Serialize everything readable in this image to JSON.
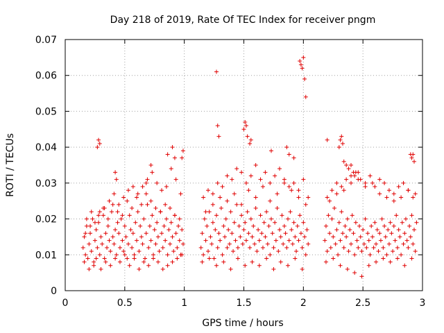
{
  "chart_data": {
    "type": "scatter",
    "title": "Day 218 of 2019, Rate Of TEC Index for receiver pngm",
    "xlabel": "GPS time / hours",
    "ylabel": "ROTI / TECUs",
    "xlim": [
      0,
      3
    ],
    "ylim": [
      0,
      0.07
    ],
    "x_ticks": [
      0,
      0.5,
      1,
      1.5,
      2,
      2.5,
      3
    ],
    "x_tick_labels": [
      "0",
      "0.5",
      "1",
      "1.5",
      "2",
      "2.5",
      "3"
    ],
    "y_ticks": [
      0,
      0.01,
      0.02,
      0.03,
      0.04,
      0.05,
      0.06,
      0.07
    ],
    "y_tick_labels": [
      "0",
      "0.01",
      "0.02",
      "0.03",
      "0.04",
      "0.05",
      "0.06",
      "0.07"
    ],
    "grid": true,
    "marker": "+",
    "color": "#e00000",
    "series": [
      {
        "name": "ROTI",
        "x": [
          0.15,
          0.16,
          0.17,
          0.18,
          0.19,
          0.2,
          0.21,
          0.22,
          0.23,
          0.24,
          0.25,
          0.26,
          0.27,
          0.28,
          0.29,
          0.3,
          0.31,
          0.32,
          0.33,
          0.34,
          0.35,
          0.36,
          0.37,
          0.38,
          0.39,
          0.4,
          0.41,
          0.42,
          0.43,
          0.44,
          0.45,
          0.46,
          0.47,
          0.48,
          0.49,
          0.5,
          0.51,
          0.52,
          0.53,
          0.54,
          0.55,
          0.56,
          0.57,
          0.58,
          0.59,
          0.6,
          0.61,
          0.62,
          0.63,
          0.64,
          0.65,
          0.66,
          0.67,
          0.68,
          0.69,
          0.7,
          0.71,
          0.72,
          0.73,
          0.74,
          0.75,
          0.76,
          0.77,
          0.78,
          0.79,
          0.8,
          0.81,
          0.82,
          0.83,
          0.84,
          0.85,
          0.86,
          0.87,
          0.88,
          0.89,
          0.9,
          0.91,
          0.92,
          0.93,
          0.94,
          0.95,
          0.96,
          0.97,
          0.98,
          0.99,
          0.16,
          0.18,
          0.2,
          0.22,
          0.24,
          0.26,
          0.28,
          0.3,
          0.32,
          0.34,
          0.36,
          0.38,
          0.4,
          0.42,
          0.44,
          0.46,
          0.48,
          0.5,
          0.52,
          0.54,
          0.56,
          0.58,
          0.6,
          0.62,
          0.64,
          0.66,
          0.68,
          0.7,
          0.72,
          0.74,
          0.76,
          0.78,
          0.8,
          0.82,
          0.84,
          0.86,
          0.88,
          0.9,
          0.92,
          0.94,
          0.96,
          0.98,
          0.17,
          0.21,
          0.25,
          0.29,
          0.33,
          0.37,
          0.41,
          0.45,
          0.49,
          0.53,
          0.57,
          0.61,
          0.65,
          0.69,
          0.73,
          0.77,
          0.81,
          0.85,
          0.89,
          0.93,
          0.97,
          0.27,
          0.28,
          0.29,
          0.42,
          0.43,
          0.68,
          0.72,
          0.86,
          0.9,
          0.92,
          0.98,
          0.99,
          1.14,
          1.15,
          1.16,
          1.17,
          1.18,
          1.19,
          1.2,
          1.21,
          1.22,
          1.23,
          1.24,
          1.25,
          1.26,
          1.27,
          1.28,
          1.29,
          1.3,
          1.31,
          1.32,
          1.33,
          1.34,
          1.35,
          1.36,
          1.37,
          1.38,
          1.39,
          1.4,
          1.41,
          1.42,
          1.43,
          1.44,
          1.45,
          1.46,
          1.47,
          1.48,
          1.49,
          1.5,
          1.51,
          1.52,
          1.53,
          1.54,
          1.55,
          1.56,
          1.57,
          1.58,
          1.59,
          1.6,
          1.61,
          1.62,
          1.63,
          1.64,
          1.65,
          1.66,
          1.67,
          1.68,
          1.69,
          1.7,
          1.71,
          1.72,
          1.73,
          1.74,
          1.75,
          1.76,
          1.77,
          1.78,
          1.79,
          1.8,
          1.81,
          1.82,
          1.83,
          1.84,
          1.85,
          1.86,
          1.87,
          1.88,
          1.89,
          1.9,
          1.91,
          1.92,
          1.93,
          1.94,
          1.95,
          1.96,
          1.97,
          1.98,
          1.99,
          2.0,
          2.01,
          2.02,
          2.03,
          2.04,
          1.15,
          1.18,
          1.21,
          1.24,
          1.27,
          1.3,
          1.33,
          1.36,
          1.39,
          1.42,
          1.45,
          1.48,
          1.51,
          1.54,
          1.57,
          1.6,
          1.63,
          1.66,
          1.69,
          1.72,
          1.75,
          1.78,
          1.81,
          1.84,
          1.87,
          1.9,
          1.93,
          1.96,
          1.99,
          2.02,
          1.16,
          1.2,
          1.24,
          1.28,
          1.32,
          1.36,
          1.4,
          1.44,
          1.48,
          1.52,
          1.56,
          1.6,
          1.64,
          1.68,
          1.72,
          1.76,
          1.8,
          1.84,
          1.88,
          1.92,
          1.96,
          2.0,
          2.04,
          1.27,
          1.28,
          1.29,
          1.5,
          1.51,
          1.52,
          1.53,
          1.55,
          1.56,
          1.73,
          1.86,
          1.88,
          1.92,
          1.97,
          1.98,
          1.99,
          2.0,
          2.01,
          2.02,
          2.18,
          2.19,
          2.2,
          2.21,
          2.22,
          2.23,
          2.24,
          2.25,
          2.26,
          2.27,
          2.28,
          2.29,
          2.3,
          2.31,
          2.32,
          2.33,
          2.34,
          2.35,
          2.36,
          2.37,
          2.38,
          2.39,
          2.4,
          2.41,
          2.42,
          2.43,
          2.44,
          2.45,
          2.46,
          2.47,
          2.48,
          2.49,
          2.5,
          2.51,
          2.52,
          2.53,
          2.54,
          2.55,
          2.56,
          2.57,
          2.58,
          2.59,
          2.6,
          2.61,
          2.62,
          2.63,
          2.64,
          2.65,
          2.66,
          2.67,
          2.68,
          2.69,
          2.7,
          2.71,
          2.72,
          2.73,
          2.74,
          2.75,
          2.76,
          2.77,
          2.78,
          2.79,
          2.8,
          2.81,
          2.82,
          2.83,
          2.84,
          2.85,
          2.86,
          2.87,
          2.88,
          2.89,
          2.9,
          2.91,
          2.92,
          2.93,
          2.94,
          2.95,
          2.19,
          2.22,
          2.25,
          2.28,
          2.31,
          2.34,
          2.37,
          2.4,
          2.43,
          2.46,
          2.49,
          2.52,
          2.55,
          2.58,
          2.61,
          2.64,
          2.67,
          2.7,
          2.73,
          2.76,
          2.79,
          2.82,
          2.85,
          2.88,
          2.91,
          2.94,
          2.2,
          2.24,
          2.28,
          2.32,
          2.36,
          2.4,
          2.44,
          2.48,
          2.52,
          2.56,
          2.6,
          2.64,
          2.68,
          2.72,
          2.76,
          2.8,
          2.84,
          2.88,
          2.92,
          2.2,
          2.3,
          2.31,
          2.32,
          2.33,
          2.34,
          2.36,
          2.38,
          2.4,
          2.42,
          2.43,
          2.46,
          2.9,
          2.91,
          2.92,
          2.93
        ],
        "y": [
          0.012,
          0.015,
          0.01,
          0.018,
          0.009,
          0.013,
          0.016,
          0.011,
          0.02,
          0.008,
          0.014,
          0.017,
          0.012,
          0.019,
          0.01,
          0.015,
          0.013,
          0.021,
          0.009,
          0.016,
          0.012,
          0.018,
          0.014,
          0.011,
          0.022,
          0.015,
          0.013,
          0.017,
          0.01,
          0.019,
          0.016,
          0.012,
          0.02,
          0.014,
          0.011,
          0.018,
          0.015,
          0.009,
          0.013,
          0.021,
          0.017,
          0.012,
          0.016,
          0.01,
          0.019,
          0.014,
          0.022,
          0.011,
          0.018,
          0.015,
          0.013,
          0.02,
          0.009,
          0.016,
          0.024,
          0.012,
          0.018,
          0.014,
          0.021,
          0.01,
          0.017,
          0.013,
          0.019,
          0.015,
          0.011,
          0.022,
          0.016,
          0.012,
          0.018,
          0.014,
          0.02,
          0.01,
          0.017,
          0.013,
          0.019,
          0.015,
          0.011,
          0.021,
          0.016,
          0.012,
          0.018,
          0.014,
          0.01,
          0.017,
          0.013,
          0.008,
          0.02,
          0.006,
          0.022,
          0.007,
          0.009,
          0.021,
          0.006,
          0.023,
          0.008,
          0.02,
          0.007,
          0.024,
          0.009,
          0.022,
          0.008,
          0.021,
          0.01,
          0.025,
          0.007,
          0.023,
          0.009,
          0.026,
          0.006,
          0.024,
          0.008,
          0.027,
          0.007,
          0.025,
          0.009,
          0.023,
          0.008,
          0.022,
          0.006,
          0.024,
          0.007,
          0.023,
          0.008,
          0.021,
          0.009,
          0.02,
          0.01,
          0.016,
          0.018,
          0.019,
          0.022,
          0.023,
          0.025,
          0.027,
          0.024,
          0.026,
          0.028,
          0.029,
          0.027,
          0.029,
          0.031,
          0.033,
          0.03,
          0.028,
          0.029,
          0.034,
          0.031,
          0.027,
          0.04,
          0.042,
          0.041,
          0.033,
          0.031,
          0.03,
          0.035,
          0.038,
          0.04,
          0.037,
          0.037,
          0.039,
          0.012,
          0.016,
          0.01,
          0.02,
          0.014,
          0.018,
          0.011,
          0.022,
          0.015,
          0.013,
          0.019,
          0.009,
          0.017,
          0.021,
          0.012,
          0.016,
          0.014,
          0.023,
          0.01,
          0.018,
          0.015,
          0.02,
          0.012,
          0.017,
          0.013,
          0.022,
          0.016,
          0.011,
          0.019,
          0.014,
          0.024,
          0.012,
          0.018,
          0.015,
          0.021,
          0.013,
          0.017,
          0.019,
          0.014,
          0.022,
          0.016,
          0.012,
          0.02,
          0.015,
          0.018,
          0.013,
          0.023,
          0.011,
          0.017,
          0.014,
          0.021,
          0.016,
          0.012,
          0.019,
          0.015,
          0.022,
          0.013,
          0.018,
          0.01,
          0.02,
          0.016,
          0.012,
          0.019,
          0.014,
          0.023,
          0.011,
          0.017,
          0.015,
          0.021,
          0.013,
          0.018,
          0.016,
          0.012,
          0.02,
          0.014,
          0.022,
          0.017,
          0.013,
          0.019,
          0.015,
          0.011,
          0.018,
          0.014,
          0.021,
          0.016,
          0.012,
          0.019,
          0.015,
          0.01,
          0.017,
          0.013,
          0.008,
          0.022,
          0.009,
          0.024,
          0.007,
          0.026,
          0.008,
          0.025,
          0.006,
          0.027,
          0.009,
          0.024,
          0.007,
          0.028,
          0.008,
          0.026,
          0.007,
          0.029,
          0.009,
          0.025,
          0.006,
          0.027,
          0.008,
          0.03,
          0.007,
          0.028,
          0.009,
          0.026,
          0.006,
          0.024,
          0.026,
          0.028,
          0.027,
          0.03,
          0.029,
          0.032,
          0.031,
          0.034,
          0.033,
          0.03,
          0.032,
          0.035,
          0.031,
          0.033,
          0.03,
          0.032,
          0.034,
          0.031,
          0.029,
          0.03,
          0.028,
          0.031,
          0.026,
          0.061,
          0.046,
          0.043,
          0.045,
          0.047,
          0.046,
          0.043,
          0.041,
          0.042,
          0.039,
          0.04,
          0.038,
          0.037,
          0.064,
          0.063,
          0.062,
          0.065,
          0.059,
          0.054,
          0.014,
          0.018,
          0.011,
          0.021,
          0.016,
          0.012,
          0.02,
          0.015,
          0.023,
          0.013,
          0.017,
          0.01,
          0.019,
          0.014,
          0.022,
          0.016,
          0.012,
          0.018,
          0.015,
          0.02,
          0.011,
          0.017,
          0.013,
          0.021,
          0.016,
          0.01,
          0.019,
          0.014,
          0.012,
          0.018,
          0.015,
          0.011,
          0.017,
          0.013,
          0.02,
          0.012,
          0.016,
          0.014,
          0.01,
          0.018,
          0.015,
          0.012,
          0.019,
          0.013,
          0.017,
          0.011,
          0.016,
          0.014,
          0.02,
          0.012,
          0.018,
          0.015,
          0.01,
          0.017,
          0.013,
          0.019,
          0.016,
          0.011,
          0.018,
          0.014,
          0.021,
          0.012,
          0.017,
          0.015,
          0.01,
          0.019,
          0.013,
          0.016,
          0.02,
          0.014,
          0.012,
          0.018,
          0.015,
          0.021,
          0.013,
          0.017,
          0.011,
          0.019,
          0.008,
          0.025,
          0.009,
          0.027,
          0.007,
          0.028,
          0.006,
          0.03,
          0.005,
          0.031,
          0.004,
          0.029,
          0.007,
          0.03,
          0.008,
          0.027,
          0.009,
          0.026,
          0.008,
          0.025,
          0.009,
          0.026,
          0.007,
          0.028,
          0.009,
          0.027,
          0.026,
          0.028,
          0.03,
          0.029,
          0.031,
          0.032,
          0.033,
          0.031,
          0.03,
          0.032,
          0.029,
          0.031,
          0.03,
          0.028,
          0.027,
          0.029,
          0.03,
          0.028,
          0.026,
          0.042,
          0.04,
          0.042,
          0.043,
          0.041,
          0.036,
          0.035,
          0.034,
          0.035,
          0.033,
          0.032,
          0.033,
          0.038,
          0.037,
          0.038,
          0.036
        ]
      }
    ]
  }
}
